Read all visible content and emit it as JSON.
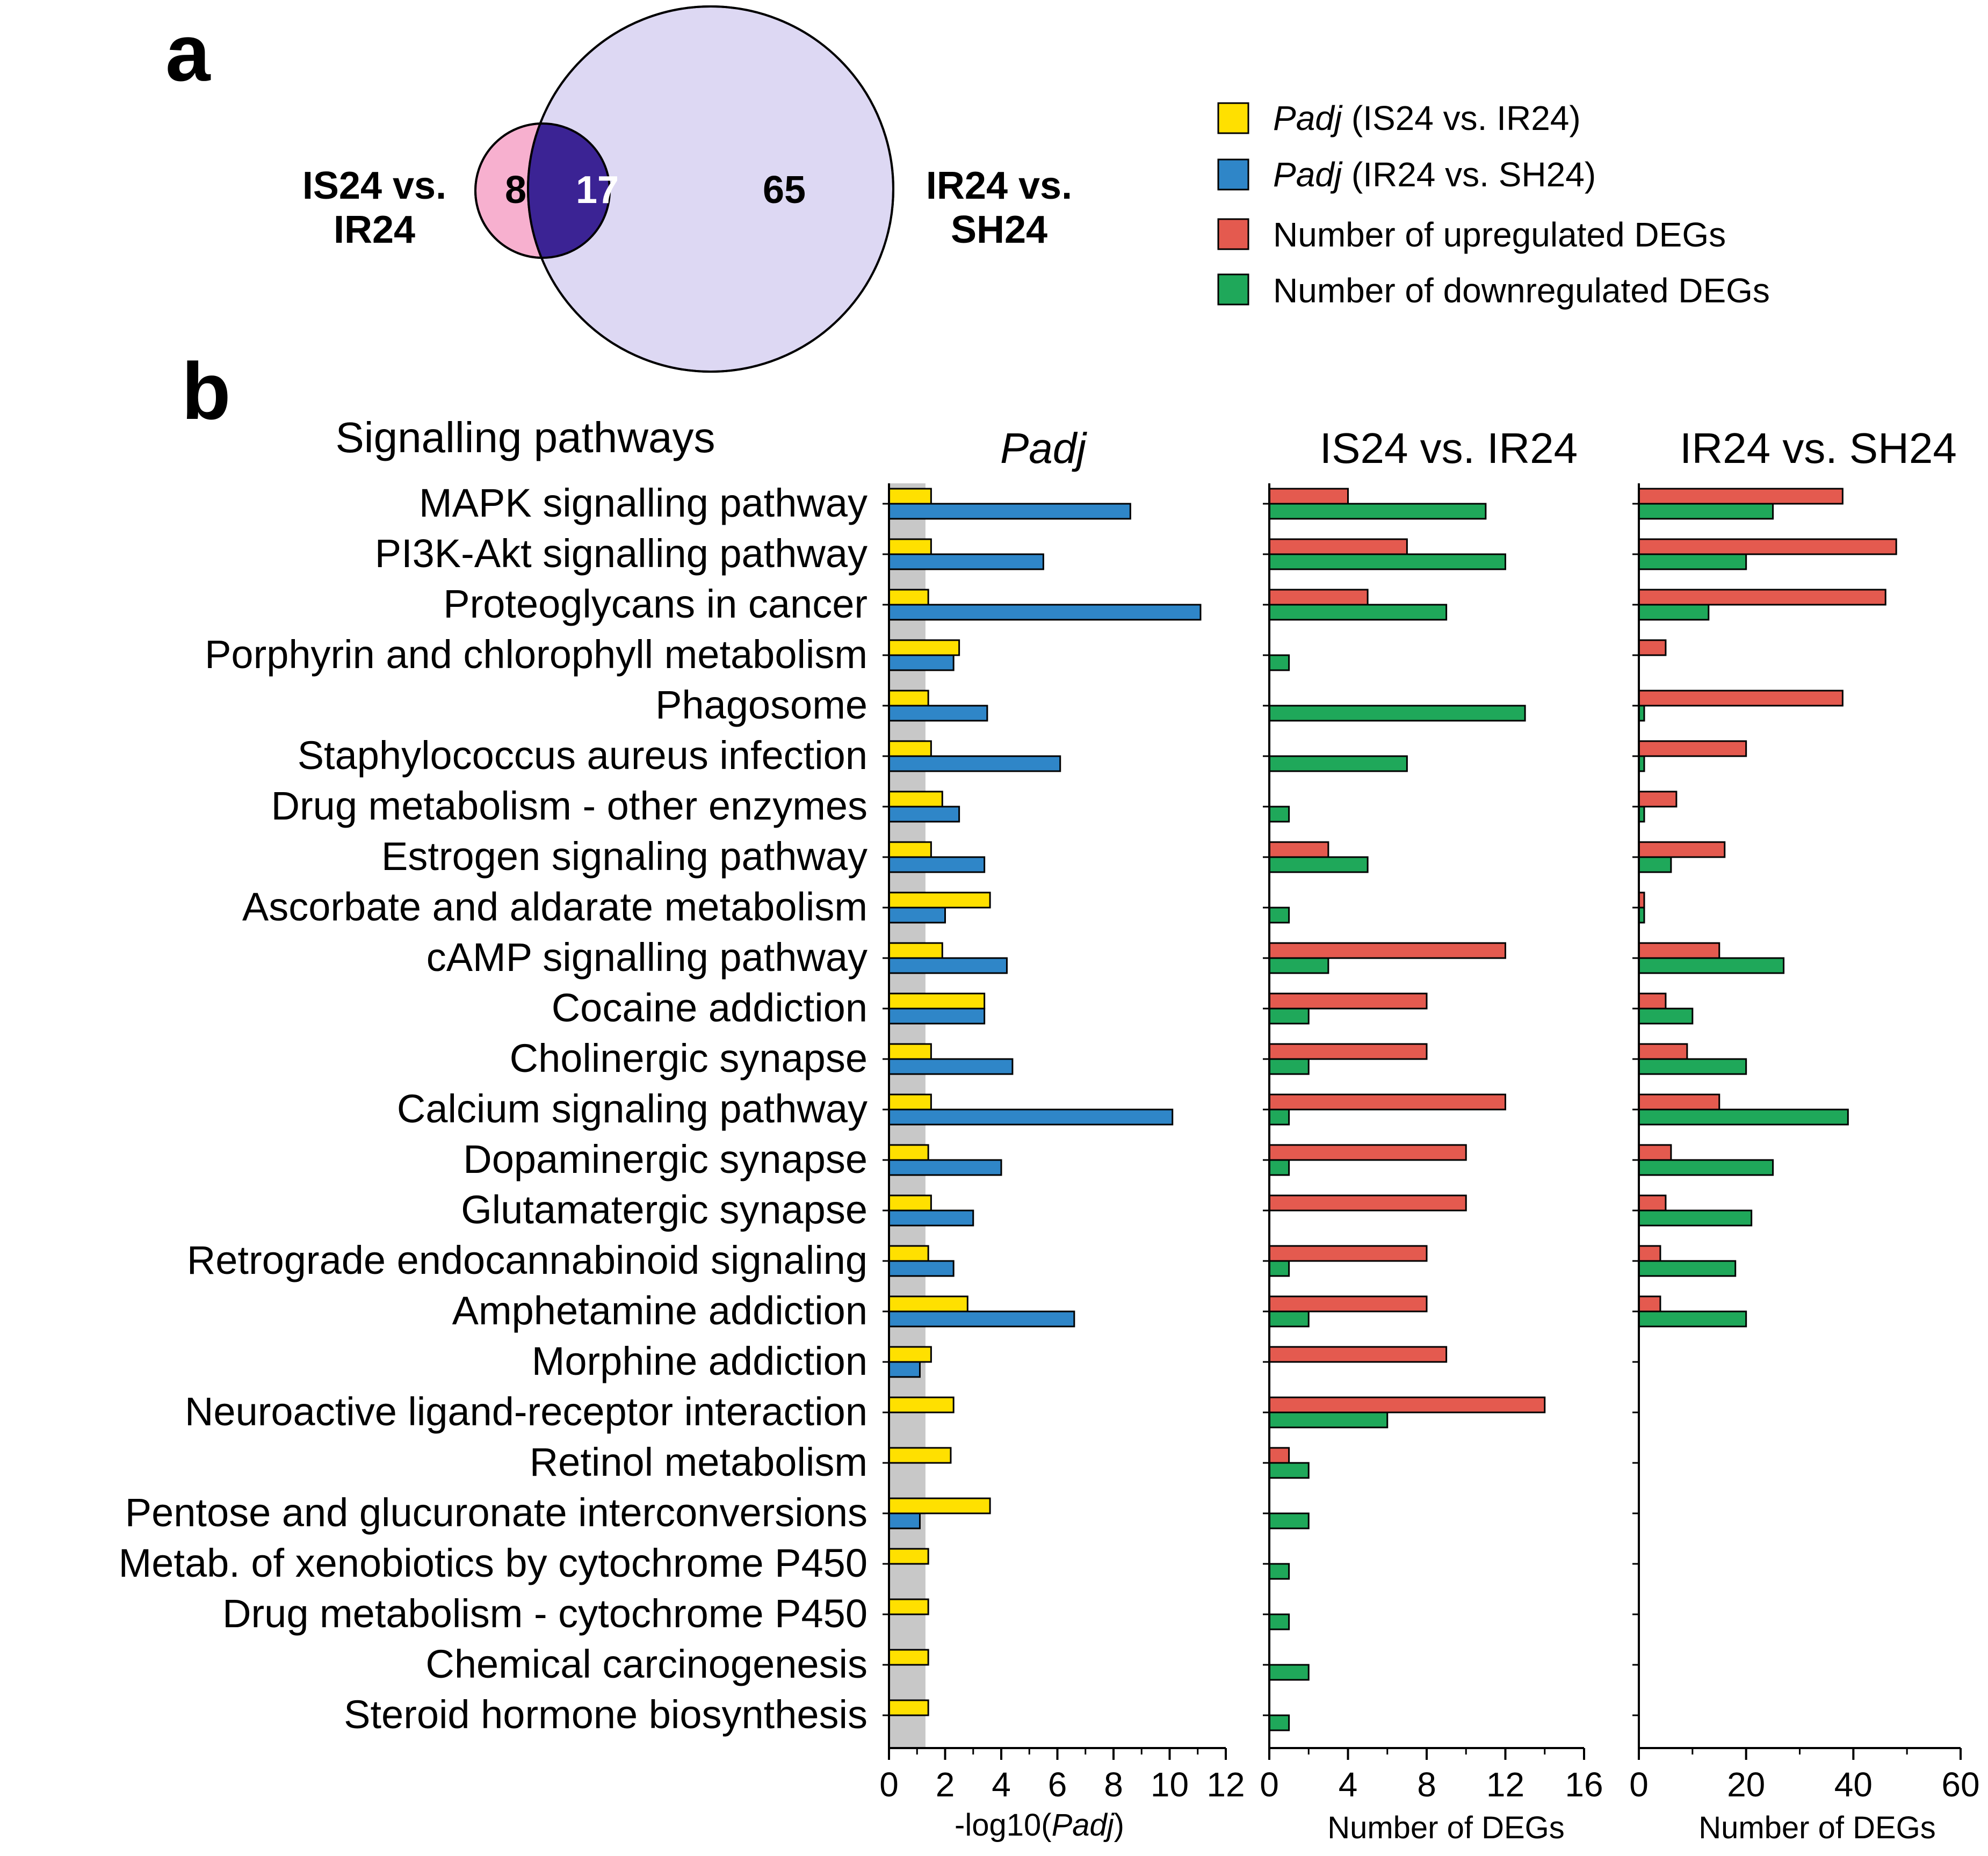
{
  "colors": {
    "padj_is24": "#ffe000",
    "padj_ir24": "#2f86c8",
    "up": "#e45a4f",
    "down": "#1fa85a",
    "venn_left": "#f7b0cf",
    "venn_overlap": "#3b2394",
    "venn_right": "#ddd8f3",
    "threshold_band": "#c8c8c8"
  },
  "panel_a": {
    "label": "a",
    "left_set": {
      "line1": "IS24 vs.",
      "line2": "IR24",
      "only_count": "8"
    },
    "right_set": {
      "line1": "IR24 vs.",
      "line2": "SH24",
      "only_count": "65"
    },
    "overlap_count": "17"
  },
  "legend": {
    "items": [
      {
        "italic": "Padj",
        "text": " (IS24 vs. IR24)",
        "color": "#ffe000"
      },
      {
        "italic": "Padj",
        "text": " (IR24 vs. SH24)",
        "color": "#2f86c8"
      },
      {
        "italic": "",
        "text": "Number of upregulated DEGs",
        "color": "#e45a4f"
      },
      {
        "italic": "",
        "text": "Number of downregulated DEGs",
        "color": "#1fa85a"
      }
    ]
  },
  "panel_b": {
    "label": "b",
    "pathways_header": "Signalling pathways",
    "pathways": [
      "MAPK signalling pathway",
      "PI3K-Akt signalling pathway",
      "Proteoglycans in cancer",
      "Porphyrin and chlorophyll metabolism",
      "Phagosome",
      "Staphylococcus aureus infection",
      "Drug metabolism - other enzymes",
      "Estrogen signaling pathway",
      "Ascorbate and aldarate metabolism",
      "cAMP signalling pathway",
      "Cocaine addiction",
      "Cholinergic synapse",
      "Calcium signaling pathway",
      "Dopaminergic synapse",
      "Glutamatergic synapse",
      "Retrograde endocannabinoid signaling",
      "Amphetamine addiction",
      "Morphine addiction",
      "Neuroactive ligand-receptor interaction",
      "Retinol metabolism",
      "Pentose and glucuronate interconversions",
      "Metab. of xenobiotics by cytochrome P450",
      "Drug metabolism - cytochrome P450",
      "Chemical carcinogenesis",
      "Steroid hormone biosynthesis"
    ]
  },
  "chart_data": [
    {
      "type": "bar",
      "orientation": "horizontal",
      "title": "Padj",
      "xlabel_prefix": "-log10(",
      "xlabel_italic": "Padj",
      "xlabel_suffix": ")",
      "xlim": [
        0,
        12
      ],
      "xticks": [
        0,
        2,
        4,
        6,
        8,
        10,
        12
      ],
      "threshold": 1.3,
      "series": [
        {
          "name": "Padj (IS24 vs. IR24)",
          "values": [
            1.5,
            1.5,
            1.4,
            2.5,
            1.4,
            1.5,
            1.9,
            1.5,
            3.6,
            1.9,
            3.4,
            1.5,
            1.5,
            1.4,
            1.5,
            1.4,
            2.8,
            1.5,
            2.3,
            2.2,
            3.6,
            1.4,
            1.4,
            1.4,
            1.4
          ]
        },
        {
          "name": "Padj (IR24 vs. SH24)",
          "values": [
            8.6,
            5.5,
            11.1,
            2.3,
            3.5,
            6.1,
            2.5,
            3.4,
            2.0,
            4.2,
            3.4,
            4.4,
            10.1,
            4.0,
            3.0,
            2.3,
            6.6,
            1.1,
            0,
            0,
            1.1,
            0,
            0,
            0,
            0
          ]
        }
      ]
    },
    {
      "type": "bar",
      "orientation": "horizontal",
      "title": "IS24 vs. IR24",
      "xlabel": "Number of DEGs",
      "xlim": [
        0,
        16
      ],
      "xticks": [
        0,
        4,
        8,
        12,
        16
      ],
      "series": [
        {
          "name": "Number of upregulated DEGs",
          "values": [
            4,
            7,
            5,
            0,
            0,
            0,
            0,
            3,
            0,
            12,
            8,
            8,
            12,
            10,
            10,
            8,
            8,
            9,
            14,
            1,
            0,
            0,
            0,
            0,
            0
          ]
        },
        {
          "name": "Number of downregulated DEGs",
          "values": [
            11,
            12,
            9,
            1,
            13,
            7,
            1,
            5,
            1,
            3,
            2,
            2,
            1,
            1,
            0,
            1,
            2,
            0,
            6,
            2,
            2,
            1,
            1,
            2,
            1
          ]
        }
      ]
    },
    {
      "type": "bar",
      "orientation": "horizontal",
      "title": "IR24 vs. SH24",
      "xlabel": "Number of DEGs",
      "xlim": [
        0,
        60
      ],
      "xticks": [
        0,
        20,
        40,
        60
      ],
      "series": [
        {
          "name": "Number of upregulated DEGs",
          "values": [
            38,
            48,
            46,
            5,
            38,
            20,
            7,
            16,
            1,
            15,
            5,
            9,
            15,
            6,
            5,
            4,
            4,
            0,
            0,
            0,
            0,
            0,
            0,
            0,
            0
          ]
        },
        {
          "name": "Number of downregulated DEGs",
          "values": [
            25,
            20,
            13,
            0,
            1,
            1,
            1,
            6,
            1,
            27,
            10,
            20,
            39,
            25,
            21,
            18,
            20,
            0,
            0,
            0,
            0,
            0,
            0,
            0,
            0
          ]
        }
      ]
    }
  ]
}
